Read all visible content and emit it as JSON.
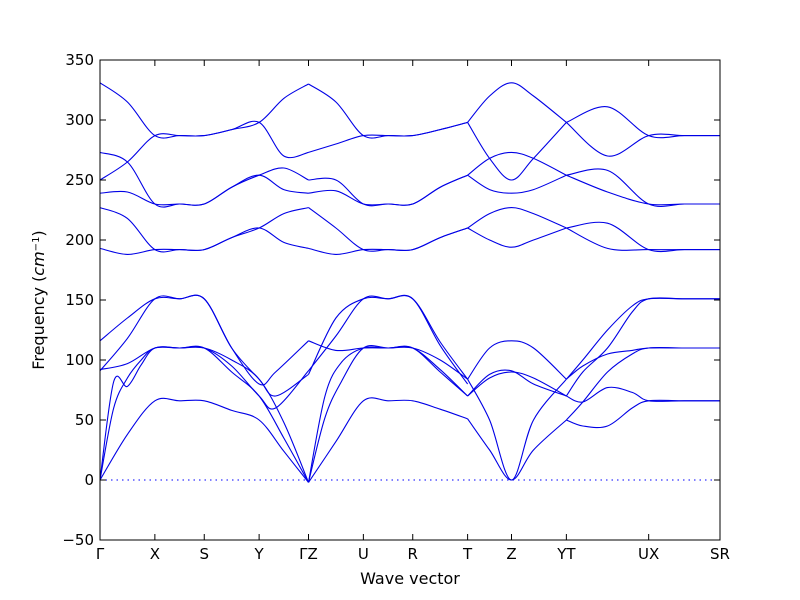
{
  "chart_data": {
    "type": "line",
    "title": "",
    "xlabel": "Wave vector",
    "ylabel_main": "Frequency (",
    "ylabel_unit": "cm",
    "ylabel_exp": "−1",
    "ylabel_close": ")",
    "ylim": [
      -50,
      350
    ],
    "yticks": [
      -50,
      0,
      50,
      100,
      150,
      200,
      250,
      300,
      350
    ],
    "ytick_labels": [
      "−50",
      "0",
      "50",
      "100",
      "150",
      "200",
      "250",
      "300",
      "350"
    ],
    "xlim": [
      0,
      11.3
    ],
    "high_symmetry_points": [
      {
        "label": "Γ",
        "x": 0
      },
      {
        "label": "X",
        "x": 1
      },
      {
        "label": "S",
        "x": 1.9
      },
      {
        "label": "Y",
        "x": 2.9
      },
      {
        "label": "ΓZ",
        "x": 3.8
      },
      {
        "label": "U",
        "x": 4.8
      },
      {
        "label": "R",
        "x": 5.7
      },
      {
        "label": "T",
        "x": 6.7
      },
      {
        "label": "Z",
        "x": 7.5
      },
      {
        "label": "YT",
        "x": 8.5
      },
      {
        "label": "UX",
        "x": 10.0
      },
      {
        "label": "SR",
        "x": 11.3
      }
    ],
    "series": [
      {
        "x": [
          0,
          0.5,
          1,
          1.45,
          1.9,
          2.4,
          2.9,
          3.35,
          3.8
        ],
        "values": [
          0,
          38,
          66,
          66,
          66,
          58,
          50,
          24,
          -2
        ]
      },
      {
        "x": [
          0,
          0.25,
          0.5,
          0.75,
          1,
          1.45,
          1.9,
          2.4,
          2.9,
          3.35,
          3.8
        ],
        "values": [
          0,
          60,
          85,
          100,
          110,
          110,
          110,
          90,
          70,
          35,
          -2
        ]
      },
      {
        "x": [
          0,
          0.25,
          0.5,
          0.75,
          1,
          1.45,
          1.9,
          2.4,
          2.9,
          3.35,
          3.8
        ],
        "values": [
          0,
          82,
          78,
          96,
          110,
          110,
          110,
          100,
          84,
          48,
          -2
        ]
      },
      {
        "x": [
          0,
          0.5,
          1,
          1.45,
          1.9,
          2.4,
          2.9,
          3.2,
          3.8
        ],
        "values": [
          91,
          118,
          151,
          151,
          151,
          110,
          84,
          70,
          88
        ]
      },
      {
        "x": [
          0,
          0.5,
          1,
          1.45,
          1.9,
          2.4,
          2.9,
          3.2,
          3.8
        ],
        "values": [
          92,
          97,
          110,
          110,
          110,
          95,
          70,
          60,
          91
        ]
      },
      {
        "x": [
          0,
          0.5,
          1,
          1.45,
          1.9,
          2.4,
          2.9,
          3.2,
          3.8
        ],
        "values": [
          116,
          135,
          151,
          151,
          151,
          110,
          80,
          90,
          116
        ]
      },
      {
        "x": [
          3.8,
          4.3,
          4.8,
          5.25,
          5.7,
          6.2,
          6.7
        ],
        "values": [
          -2,
          32,
          66,
          66,
          66,
          59,
          51
        ]
      },
      {
        "x": [
          3.8,
          4.1,
          4.4,
          4.8,
          5.25,
          5.7,
          6.2,
          6.7
        ],
        "values": [
          -2,
          52,
          82,
          110,
          110,
          110,
          92,
          70
        ]
      },
      {
        "x": [
          3.8,
          4.1,
          4.4,
          4.8,
          5.25,
          5.7,
          6.2,
          6.7
        ],
        "values": [
          -2,
          70,
          98,
          110,
          110,
          110,
          100,
          84
        ]
      },
      {
        "x": [
          3.8,
          4.3,
          4.8,
          5.25,
          5.7,
          6.2,
          6.7
        ],
        "values": [
          88,
          135,
          151,
          151,
          151,
          115,
          84
        ]
      },
      {
        "x": [
          3.8,
          4.3,
          4.8,
          5.25,
          5.7,
          6.2,
          6.7
        ],
        "values": [
          116,
          108,
          110,
          110,
          110,
          90,
          70
        ]
      },
      {
        "x": [
          3.8,
          4.3,
          4.8,
          5.25,
          5.7,
          6.2,
          6.7
        ],
        "values": [
          91,
          120,
          151,
          151,
          151,
          112,
          80
        ]
      },
      {
        "x": [
          6.7,
          7.1,
          7.5,
          7.9,
          8.5
        ],
        "values": [
          51,
          25,
          0,
          25,
          50
        ]
      },
      {
        "x": [
          6.7,
          7.1,
          7.5,
          7.9,
          8.5
        ],
        "values": [
          70,
          85,
          90,
          85,
          70
        ]
      },
      {
        "x": [
          6.7,
          7.1,
          7.5,
          7.9,
          8.5
        ],
        "values": [
          84,
          110,
          116,
          110,
          84
        ]
      },
      {
        "x": [
          6.7,
          7.1,
          7.5,
          7.9,
          8.5
        ],
        "values": [
          84,
          50,
          0,
          50,
          84
        ]
      },
      {
        "x": [
          6.7,
          7.1,
          7.5,
          7.9,
          8.5
        ],
        "values": [
          70,
          88,
          91,
          80,
          70
        ]
      },
      {
        "x": [
          8.5,
          8.8,
          9.25,
          9.7,
          10.0,
          10.65,
          11.3
        ],
        "values": [
          50,
          45,
          45,
          60,
          66,
          66,
          66
        ]
      },
      {
        "x": [
          8.5,
          8.8,
          9.25,
          9.7,
          10.0,
          10.65,
          11.3
        ],
        "values": [
          70,
          65,
          77,
          73,
          66,
          66,
          66
        ]
      },
      {
        "x": [
          8.5,
          8.8,
          9.25,
          9.7,
          10.0,
          10.65,
          11.3
        ],
        "values": [
          84,
          95,
          105,
          108,
          110,
          110,
          110
        ]
      },
      {
        "x": [
          8.5,
          8.8,
          9.25,
          9.7,
          10.0,
          10.65,
          11.3
        ],
        "values": [
          84,
          100,
          125,
          145,
          151,
          151,
          151
        ]
      },
      {
        "x": [
          8.5,
          8.8,
          9.25,
          9.7,
          10.0,
          10.65,
          11.3
        ],
        "values": [
          70,
          90,
          110,
          140,
          151,
          151,
          151
        ]
      },
      {
        "x": [
          8.5,
          8.8,
          9.25,
          9.7,
          10.0,
          10.65,
          11.3
        ],
        "values": [
          50,
          65,
          90,
          105,
          110,
          110,
          110
        ]
      },
      {
        "x": [
          0,
          0.5,
          1,
          1.45,
          1.9,
          2.4,
          2.9,
          3.35,
          3.8
        ],
        "values": [
          193,
          188,
          192,
          192,
          192,
          202,
          210,
          198,
          193
        ]
      },
      {
        "x": [
          0,
          0.5,
          1,
          1.45,
          1.9,
          2.4,
          2.9,
          3.35,
          3.8
        ],
        "values": [
          227,
          218,
          192,
          192,
          192,
          202,
          210,
          222,
          227
        ]
      },
      {
        "x": [
          0,
          0.5,
          1,
          1.45,
          1.9,
          2.4,
          2.9,
          3.35,
          3.8
        ],
        "values": [
          239,
          240,
          230,
          230,
          230,
          244,
          254,
          242,
          239
        ]
      },
      {
        "x": [
          0,
          0.5,
          1,
          1.45,
          1.9,
          2.4,
          2.9,
          3.35,
          3.8
        ],
        "values": [
          273,
          265,
          230,
          230,
          230,
          244,
          254,
          260,
          250
        ]
      },
      {
        "x": [
          0,
          0.5,
          1,
          1.45,
          1.9,
          2.4,
          2.9,
          3.35,
          3.8
        ],
        "values": [
          250,
          265,
          287,
          287,
          287,
          292,
          298,
          318,
          330
        ]
      },
      {
        "x": [
          0,
          0.5,
          1,
          1.45,
          1.9,
          2.4,
          2.9,
          3.35,
          3.8
        ],
        "values": [
          331,
          315,
          287,
          287,
          287,
          292,
          298,
          270,
          273
        ]
      },
      {
        "x": [
          3.8,
          4.3,
          4.8,
          5.25,
          5.7,
          6.2,
          6.7
        ],
        "values": [
          193,
          188,
          192,
          192,
          192,
          202,
          210
        ]
      },
      {
        "x": [
          3.8,
          4.3,
          4.8,
          5.25,
          5.7,
          6.2,
          6.7
        ],
        "values": [
          227,
          210,
          192,
          192,
          192,
          202,
          210
        ]
      },
      {
        "x": [
          3.8,
          4.3,
          4.8,
          5.25,
          5.7,
          6.2,
          6.7
        ],
        "values": [
          239,
          241,
          230,
          230,
          230,
          244,
          254
        ]
      },
      {
        "x": [
          3.8,
          4.3,
          4.8,
          5.25,
          5.7,
          6.2,
          6.7
        ],
        "values": [
          250,
          250,
          230,
          230,
          230,
          244,
          254
        ]
      },
      {
        "x": [
          3.8,
          4.3,
          4.8,
          5.25,
          5.7,
          6.2,
          6.7
        ],
        "values": [
          330,
          315,
          287,
          287,
          287,
          292,
          298
        ]
      },
      {
        "x": [
          3.8,
          4.3,
          4.8,
          5.25,
          5.7,
          6.2,
          6.7
        ],
        "values": [
          273,
          280,
          287,
          287,
          287,
          292,
          298
        ]
      },
      {
        "x": [
          6.7,
          7.1,
          7.5,
          7.9,
          8.5
        ],
        "values": [
          210,
          200,
          194,
          200,
          210
        ]
      },
      {
        "x": [
          6.7,
          7.1,
          7.5,
          7.9,
          8.5
        ],
        "values": [
          210,
          222,
          227,
          222,
          210
        ]
      },
      {
        "x": [
          6.7,
          7.1,
          7.5,
          7.9,
          8.5
        ],
        "values": [
          254,
          268,
          273,
          268,
          254
        ]
      },
      {
        "x": [
          6.7,
          7.1,
          7.5,
          7.9,
          8.5
        ],
        "values": [
          254,
          242,
          239,
          242,
          254
        ]
      },
      {
        "x": [
          6.7,
          7.1,
          7.5,
          7.9,
          8.5
        ],
        "values": [
          298,
          320,
          331,
          320,
          298
        ]
      },
      {
        "x": [
          6.7,
          7.1,
          7.5,
          7.9,
          8.5
        ],
        "values": [
          298,
          268,
          250,
          268,
          298
        ]
      },
      {
        "x": [
          8.5,
          9.25,
          10.0,
          10.65,
          11.3
        ],
        "values": [
          210,
          193,
          192,
          192,
          192
        ]
      },
      {
        "x": [
          8.5,
          9.25,
          10.0,
          10.65,
          11.3
        ],
        "values": [
          210,
          214,
          192,
          192,
          192
        ]
      },
      {
        "x": [
          8.5,
          9.25,
          10.0,
          10.65,
          11.3
        ],
        "values": [
          254,
          240,
          230,
          230,
          230
        ]
      },
      {
        "x": [
          8.5,
          9.25,
          10.0,
          10.65,
          11.3
        ],
        "values": [
          254,
          258,
          230,
          230,
          230
        ]
      },
      {
        "x": [
          8.5,
          9.25,
          10.0,
          10.65,
          11.3
        ],
        "values": [
          298,
          270,
          287,
          287,
          287
        ]
      },
      {
        "x": [
          8.5,
          9.25,
          10.0,
          10.65,
          11.3
        ],
        "values": [
          298,
          311,
          287,
          287,
          287
        ]
      }
    ],
    "zero_line": 0,
    "grid": false,
    "colors": {
      "band": "#0000e6",
      "zero": "#0000ff",
      "axis": "#000000"
    }
  }
}
